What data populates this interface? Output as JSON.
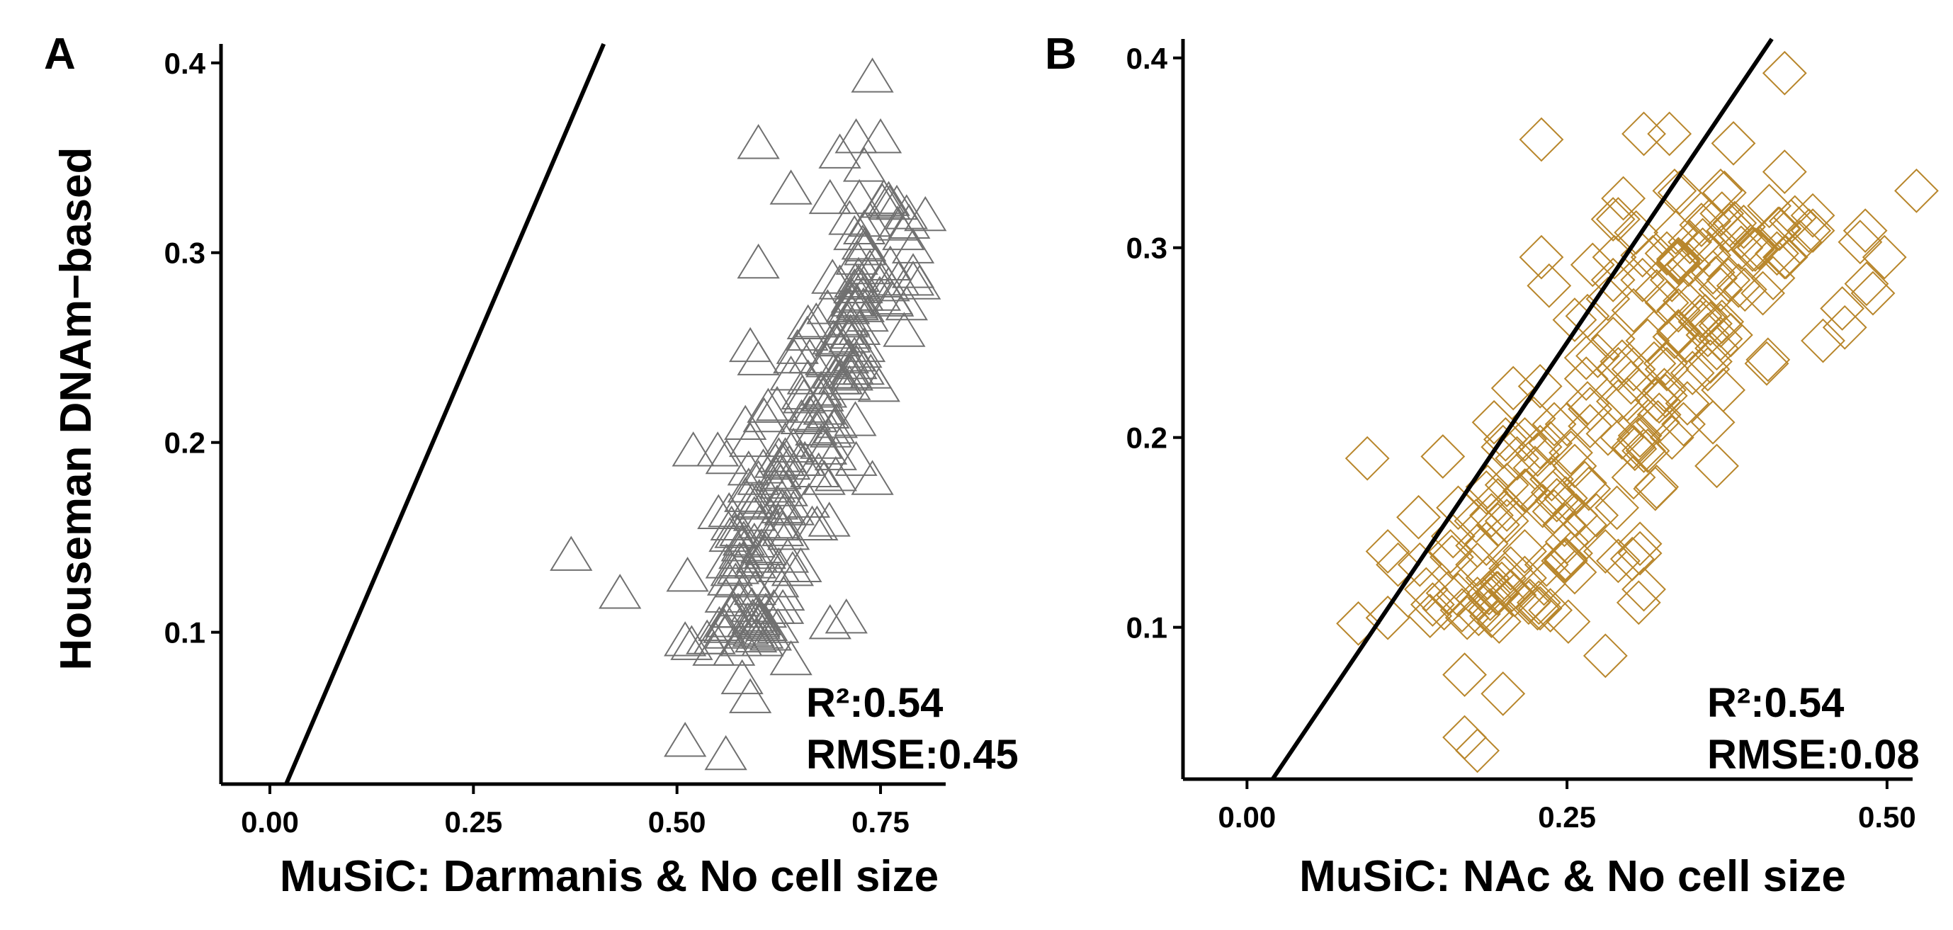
{
  "ylabel": "Houseman DNAm−based",
  "chart_data": [
    {
      "type": "scatter",
      "panel_label": "A",
      "xlabel": "MuSiC: Darmanis & No cell size",
      "xlim": [
        -0.06,
        0.83
      ],
      "ylim": [
        0.02,
        0.41
      ],
      "xticks": [
        0.0,
        0.25,
        0.5,
        0.75
      ],
      "xtick_labels": [
        "0.00",
        "0.25",
        "0.50",
        "0.75"
      ],
      "yticks": [
        0.1,
        0.2,
        0.3,
        0.4
      ],
      "ytick_labels": [
        "0.1",
        "0.2",
        "0.3",
        "0.4"
      ],
      "grid": false,
      "marker": "triangle",
      "color": "#707070",
      "reference_line": {
        "slope": 1,
        "intercept": 0
      },
      "stats": {
        "r2_label": "R²:0.54",
        "rmse_label": "RMSE:0.45"
      },
      "points_seed": 11,
      "points": [
        [
          0.74,
          0.392
        ],
        [
          0.6,
          0.357
        ],
        [
          0.64,
          0.333
        ],
        [
          0.6,
          0.294
        ],
        [
          0.59,
          0.25
        ],
        [
          0.6,
          0.243
        ],
        [
          0.52,
          0.195
        ],
        [
          0.55,
          0.195
        ],
        [
          0.59,
          0.2
        ],
        [
          0.37,
          0.14
        ],
        [
          0.43,
          0.12
        ],
        [
          0.51,
          0.042
        ],
        [
          0.56,
          0.035
        ],
        [
          0.59,
          0.065
        ],
        [
          0.58,
          0.075
        ],
        [
          0.64,
          0.085
        ],
        [
          0.57,
          0.09
        ],
        [
          0.72,
          0.36
        ],
        [
          0.75,
          0.36
        ],
        [
          0.7,
          0.352
        ],
        [
          0.73,
          0.345
        ],
        [
          0.74,
          0.18
        ],
        [
          0.72,
          0.19
        ]
      ],
      "cluster": {
        "x_range": [
          0.57,
          0.76
        ],
        "y_range": [
          0.09,
          0.33
        ],
        "slope": 0.16,
        "spread": 0.035,
        "count": 220
      }
    },
    {
      "type": "scatter",
      "panel_label": "B",
      "xlabel": "MuSiC: NAc & No cell size",
      "xlim": [
        -0.05,
        0.52
      ],
      "ylim": [
        0.02,
        0.41
      ],
      "xticks": [
        0.0,
        0.25,
        0.5
      ],
      "xtick_labels": [
        "0.00",
        "0.25",
        "0.50"
      ],
      "yticks": [
        0.1,
        0.2,
        0.3,
        0.4
      ],
      "ytick_labels": [
        "0.1",
        "0.2",
        "0.3",
        "0.4"
      ],
      "grid": false,
      "marker": "diamond",
      "color": "#B8862B",
      "reference_line": {
        "slope": 1,
        "intercept": 0
      },
      "stats": {
        "r2_label": "R²:0.54",
        "rmse_label": "RMSE:0.08"
      },
      "points_seed": 23,
      "points": [
        [
          0.42,
          0.392
        ],
        [
          0.23,
          0.357
        ],
        [
          0.31,
          0.36
        ],
        [
          0.38,
          0.355
        ],
        [
          0.42,
          0.34
        ],
        [
          0.11,
          0.14
        ],
        [
          0.14,
          0.12
        ],
        [
          0.17,
          0.042
        ],
        [
          0.18,
          0.035
        ],
        [
          0.2,
          0.065
        ],
        [
          0.17,
          0.075
        ],
        [
          0.28,
          0.085
        ],
        [
          0.2,
          0.195
        ],
        [
          0.23,
          0.295
        ],
        [
          0.33,
          0.36
        ],
        [
          0.4,
          0.3
        ],
        [
          0.42,
          0.295
        ],
        [
          0.29,
          0.135
        ]
      ],
      "cluster": {
        "x_range": [
          0.19,
          0.41
        ],
        "y_range": [
          0.1,
          0.33
        ],
        "slope": 1.0,
        "spread": 0.05,
        "count": 230
      }
    }
  ]
}
